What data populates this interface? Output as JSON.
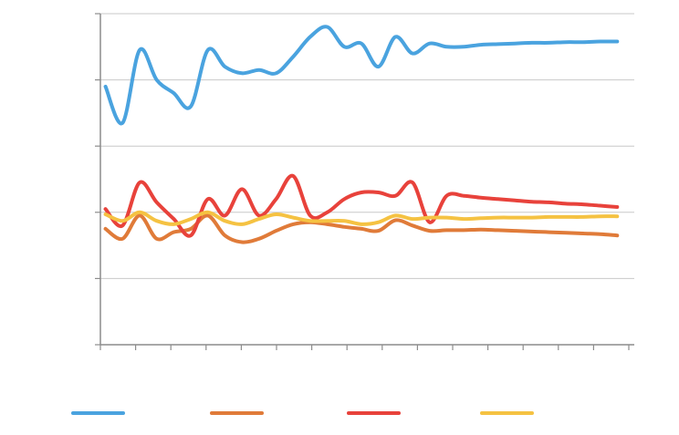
{
  "chart_data": {
    "type": "line",
    "title": "",
    "xlabel": "",
    "ylabel": "",
    "x": [
      0,
      1,
      2,
      3,
      4,
      5,
      6,
      7,
      8,
      9,
      10,
      11,
      12,
      13,
      14,
      15,
      16,
      17,
      18,
      19,
      20,
      21,
      22,
      23,
      24,
      25,
      26,
      27,
      28,
      29,
      30
    ],
    "xlim": [
      -0.3,
      31
    ],
    "ylim": [
      0,
      5
    ],
    "grid": true,
    "legend_position": "bottom",
    "series": [
      {
        "color": "#4aa3df",
        "values": [
          3.9,
          3.35,
          4.45,
          4.0,
          3.8,
          3.6,
          4.45,
          4.2,
          4.1,
          4.15,
          4.1,
          4.35,
          4.65,
          4.8,
          4.5,
          4.55,
          4.2,
          4.65,
          4.4,
          4.55,
          4.5,
          4.5,
          4.53,
          4.54,
          4.55,
          4.56,
          4.56,
          4.57,
          4.57,
          4.58,
          4.58
        ]
      },
      {
        "color": "#e07b39",
        "values": [
          1.75,
          1.6,
          1.95,
          1.6,
          1.7,
          1.75,
          1.95,
          1.65,
          1.55,
          1.6,
          1.72,
          1.82,
          1.85,
          1.82,
          1.78,
          1.75,
          1.72,
          1.88,
          1.8,
          1.72,
          1.73,
          1.73,
          1.74,
          1.73,
          1.72,
          1.71,
          1.7,
          1.69,
          1.68,
          1.67,
          1.65
        ]
      },
      {
        "color": "#e8423b",
        "values": [
          2.05,
          1.8,
          2.45,
          2.15,
          1.9,
          1.65,
          2.2,
          1.95,
          2.35,
          1.95,
          2.2,
          2.55,
          1.95,
          2.0,
          2.2,
          2.3,
          2.3,
          2.25,
          2.45,
          1.85,
          2.25,
          2.25,
          2.22,
          2.2,
          2.18,
          2.16,
          2.15,
          2.13,
          2.12,
          2.1,
          2.08
        ]
      },
      {
        "color": "#f5c242",
        "values": [
          1.97,
          1.87,
          2.0,
          1.87,
          1.82,
          1.9,
          2.0,
          1.87,
          1.82,
          1.9,
          1.97,
          1.92,
          1.87,
          1.87,
          1.87,
          1.82,
          1.85,
          1.95,
          1.9,
          1.92,
          1.92,
          1.9,
          1.91,
          1.92,
          1.92,
          1.92,
          1.93,
          1.93,
          1.93,
          1.94,
          1.94
        ]
      }
    ]
  }
}
